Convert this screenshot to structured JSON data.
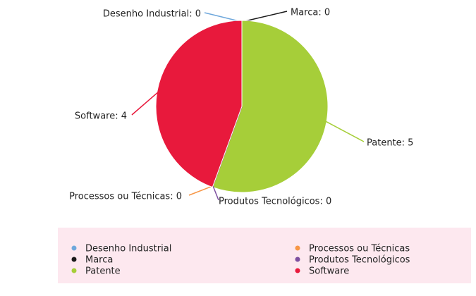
{
  "chart_data": {
    "type": "pie",
    "categories": [
      "Desenho Industrial",
      "Marca",
      "Patente",
      "Processos ou Técnicas",
      "Produtos Tecnológicos",
      "Software"
    ],
    "values": [
      0,
      0,
      5,
      0,
      0,
      4
    ],
    "value_labels": [
      "Desenho Industrial: 0",
      "Marca: 0",
      "Patente: 5",
      "Processos ou Técnicas: 0",
      "Produtos Tecnológicos: 0",
      "Software: 4"
    ],
    "colors": [
      "#6fa8dc",
      "#1a1a1a",
      "#a6ce39",
      "#f79646",
      "#7d4fa0",
      "#e8193c"
    ],
    "legend": "bottom"
  }
}
